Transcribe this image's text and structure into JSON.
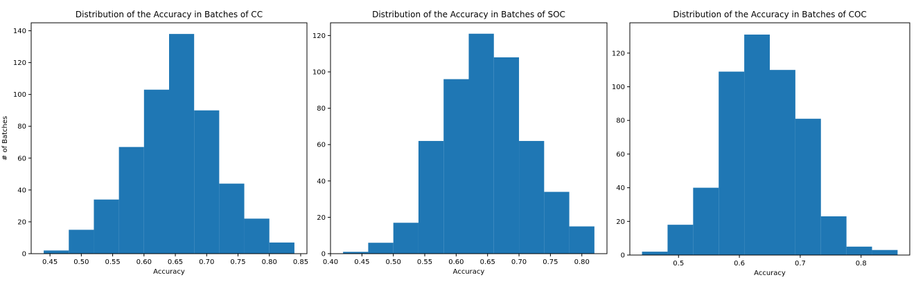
{
  "chart_data": [
    {
      "type": "bar",
      "title": "Distribution of the Accuracy in Batches of CC",
      "xlabel": "Accuracy",
      "ylabel": "# of Batches",
      "bin_edges": [
        0.44,
        0.48,
        0.52,
        0.56,
        0.6,
        0.64,
        0.68,
        0.72,
        0.76,
        0.8,
        0.84
      ],
      "values": [
        2,
        15,
        34,
        67,
        103,
        138,
        90,
        44,
        22,
        7
      ],
      "xlim": [
        0.42,
        0.86
      ],
      "ylim": [
        0,
        145
      ],
      "xticks": [
        0.45,
        0.5,
        0.55,
        0.6,
        0.65,
        0.7,
        0.75,
        0.8,
        0.85
      ],
      "xtick_labels": [
        "0.45",
        "0.50",
        "0.55",
        "0.60",
        "0.65",
        "0.70",
        "0.75",
        "0.80",
        "0.85"
      ],
      "yticks": [
        0,
        20,
        40,
        60,
        80,
        100,
        120,
        140
      ],
      "ytick_labels": [
        "0",
        "20",
        "40",
        "60",
        "80",
        "100",
        "120",
        "140"
      ],
      "color": "#1f77b4",
      "grid": false
    },
    {
      "type": "bar",
      "title": "Distribution of the Accuracy in Batches of SOC",
      "xlabel": "Accuracy",
      "ylabel": "",
      "bin_edges": [
        0.42,
        0.46,
        0.5,
        0.54,
        0.58,
        0.62,
        0.66,
        0.7,
        0.74,
        0.78,
        0.82
      ],
      "values": [
        1,
        6,
        17,
        62,
        96,
        121,
        108,
        62,
        34,
        15
      ],
      "xlim": [
        0.4,
        0.84
      ],
      "ylim": [
        0,
        127
      ],
      "xticks": [
        0.4,
        0.45,
        0.5,
        0.55,
        0.6,
        0.65,
        0.7,
        0.75,
        0.8
      ],
      "xtick_labels": [
        "0.40",
        "0.45",
        "0.50",
        "0.55",
        "0.60",
        "0.65",
        "0.70",
        "0.75",
        "0.80"
      ],
      "yticks": [
        0,
        20,
        40,
        60,
        80,
        100,
        120
      ],
      "ytick_labels": [
        "0",
        "20",
        "40",
        "60",
        "80",
        "100",
        "120"
      ],
      "color": "#1f77b4",
      "grid": false
    },
    {
      "type": "bar",
      "title": "Distribution of the Accuracy in Batches of COC",
      "xlabel": "Accuracy",
      "ylabel": "",
      "bin_edges": [
        0.44,
        0.482,
        0.524,
        0.566,
        0.608,
        0.65,
        0.692,
        0.734,
        0.776,
        0.818,
        0.86
      ],
      "values": [
        2,
        18,
        40,
        109,
        131,
        110,
        81,
        23,
        5,
        3
      ],
      "xlim": [
        0.42,
        0.88
      ],
      "ylim": [
        0,
        138
      ],
      "xticks": [
        0.5,
        0.6,
        0.7,
        0.8
      ],
      "xtick_labels": [
        "0.5",
        "0.6",
        "0.7",
        "0.8"
      ],
      "yticks": [
        0,
        20,
        40,
        60,
        80,
        100,
        120
      ],
      "ytick_labels": [
        "0",
        "20",
        "40",
        "60",
        "80",
        "100",
        "120"
      ],
      "color": "#1f77b4",
      "grid": false
    }
  ]
}
